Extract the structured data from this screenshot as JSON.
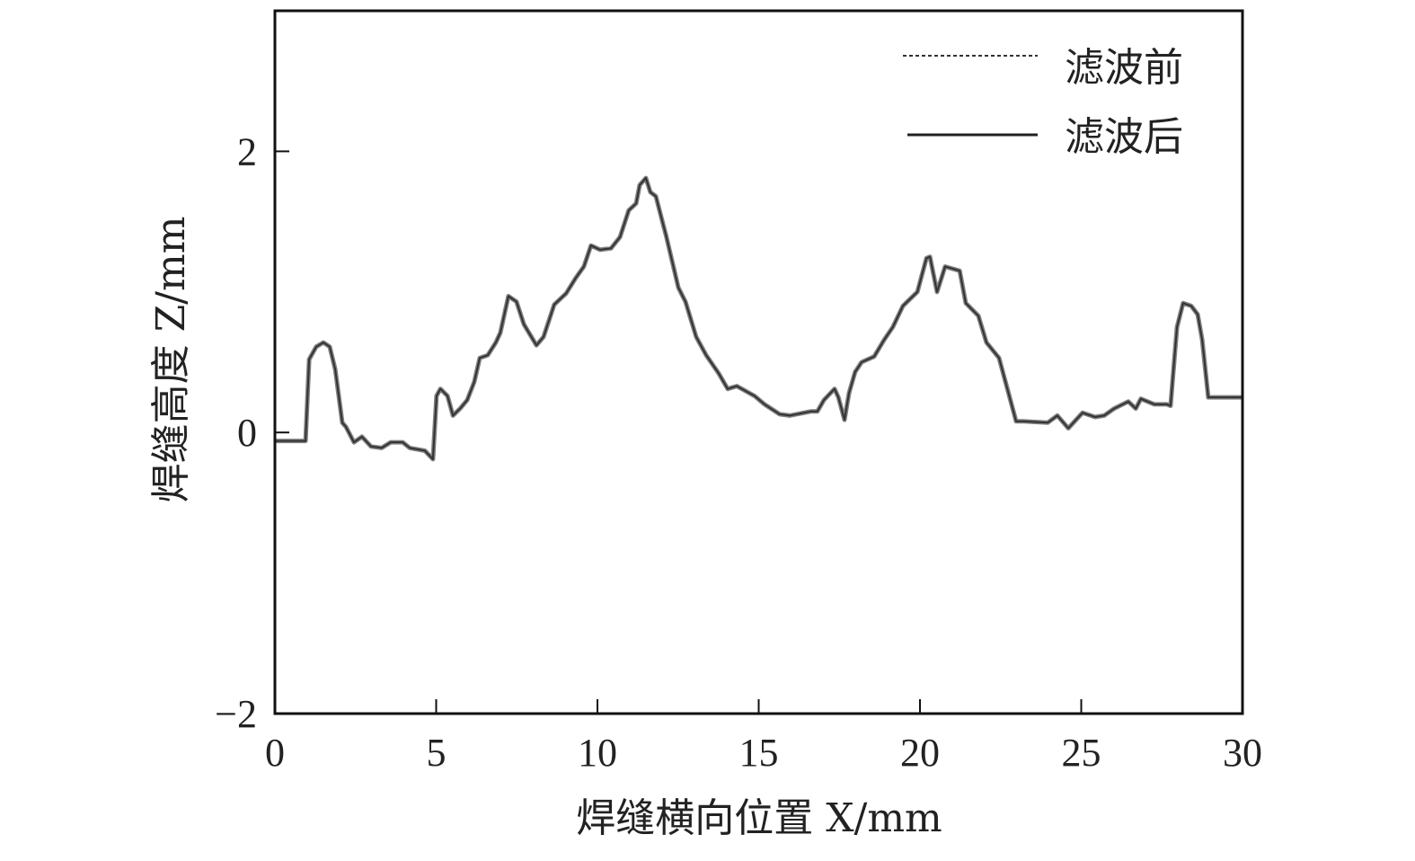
{
  "chart_data": {
    "type": "line",
    "title": "",
    "xlabel": "焊缝横向位置 X/mm",
    "ylabel": "焊缝高度 Z/mm",
    "xlim": [
      0,
      30
    ],
    "ylim": [
      -2,
      3
    ],
    "xticks": [
      "0",
      "5",
      "10",
      "15",
      "20",
      "25",
      "30"
    ],
    "yticks": [
      "2",
      "0",
      "−2"
    ],
    "grid": false,
    "legend_position": "top-right",
    "x": [
      0,
      0.95,
      1.06,
      1.28,
      1.5,
      1.7,
      1.87,
      2.09,
      2.2,
      2.45,
      2.7,
      2.98,
      3.31,
      3.59,
      3.96,
      4.18,
      4.65,
      4.9,
      5.01,
      5.13,
      5.35,
      5.52,
      5.74,
      5.96,
      6.18,
      6.35,
      6.6,
      6.85,
      6.99,
      7.24,
      7.49,
      7.72,
      8.11,
      8.33,
      8.66,
      9.03,
      9.33,
      9.58,
      9.8,
      10.08,
      10.42,
      10.7,
      10.97,
      11.2,
      11.31,
      11.5,
      11.64,
      11.81,
      12.14,
      12.51,
      12.73,
      13.06,
      13.37,
      13.76,
      14.04,
      14.32,
      14.87,
      15.18,
      15.65,
      15.96,
      16.63,
      16.82,
      17.02,
      17.35,
      17.47,
      17.66,
      17.8,
      17.99,
      18.19,
      18.58,
      18.89,
      19.16,
      19.47,
      19.92,
      20.2,
      20.31,
      20.53,
      20.78,
      21.23,
      21.42,
      21.81,
      22.06,
      22.45,
      22.98,
      23.18,
      23.96,
      24.26,
      24.6,
      25.04,
      25.43,
      25.71,
      26.02,
      26.46,
      26.69,
      26.85,
      27.27,
      27.66,
      27.77,
      27.97,
      28.16,
      28.41,
      28.61,
      28.75,
      28.94,
      30
    ],
    "series": [
      {
        "name": "滤波前",
        "style": "dashed",
        "color": "#808080",
        "values": [
          -0.06,
          -0.06,
          0.52,
          0.61,
          0.64,
          0.61,
          0.45,
          0.07,
          0.04,
          -0.07,
          -0.03,
          -0.1,
          -0.11,
          -0.07,
          -0.07,
          -0.11,
          -0.13,
          -0.19,
          0.26,
          0.31,
          0.26,
          0.12,
          0.17,
          0.23,
          0.36,
          0.53,
          0.55,
          0.64,
          0.71,
          0.97,
          0.93,
          0.77,
          0.62,
          0.68,
          0.91,
          0.99,
          1.1,
          1.18,
          1.33,
          1.3,
          1.31,
          1.39,
          1.58,
          1.63,
          1.76,
          1.81,
          1.71,
          1.68,
          1.39,
          1.03,
          0.93,
          0.68,
          0.55,
          0.42,
          0.31,
          0.33,
          0.26,
          0.2,
          0.13,
          0.12,
          0.15,
          0.15,
          0.23,
          0.31,
          0.25,
          0.09,
          0.28,
          0.43,
          0.5,
          0.54,
          0.66,
          0.75,
          0.9,
          1.0,
          1.24,
          1.25,
          1.0,
          1.18,
          1.15,
          0.92,
          0.83,
          0.64,
          0.53,
          0.08,
          0.08,
          0.07,
          0.12,
          0.03,
          0.14,
          0.11,
          0.12,
          0.17,
          0.22,
          0.17,
          0.24,
          0.2,
          0.2,
          0.19,
          0.75,
          0.92,
          0.9,
          0.84,
          0.66,
          0.25,
          0.25
        ]
      },
      {
        "name": "滤波后",
        "style": "solid",
        "color": "#333333",
        "values": [
          -0.06,
          -0.06,
          0.52,
          0.61,
          0.64,
          0.61,
          0.45,
          0.07,
          0.04,
          -0.07,
          -0.03,
          -0.1,
          -0.11,
          -0.07,
          -0.07,
          -0.11,
          -0.13,
          -0.19,
          0.26,
          0.31,
          0.26,
          0.12,
          0.17,
          0.23,
          0.36,
          0.53,
          0.55,
          0.64,
          0.71,
          0.97,
          0.93,
          0.77,
          0.62,
          0.68,
          0.91,
          0.99,
          1.1,
          1.18,
          1.33,
          1.3,
          1.31,
          1.39,
          1.58,
          1.63,
          1.76,
          1.81,
          1.71,
          1.68,
          1.39,
          1.03,
          0.93,
          0.68,
          0.55,
          0.42,
          0.31,
          0.33,
          0.26,
          0.2,
          0.13,
          0.12,
          0.15,
          0.15,
          0.23,
          0.31,
          0.25,
          0.09,
          0.28,
          0.43,
          0.5,
          0.54,
          0.66,
          0.75,
          0.9,
          1.0,
          1.24,
          1.25,
          1.0,
          1.18,
          1.15,
          0.92,
          0.83,
          0.64,
          0.53,
          0.08,
          0.08,
          0.07,
          0.12,
          0.03,
          0.14,
          0.11,
          0.12,
          0.17,
          0.22,
          0.17,
          0.24,
          0.2,
          0.2,
          0.19,
          0.75,
          0.92,
          0.9,
          0.84,
          0.66,
          0.25,
          0.25
        ]
      }
    ]
  }
}
